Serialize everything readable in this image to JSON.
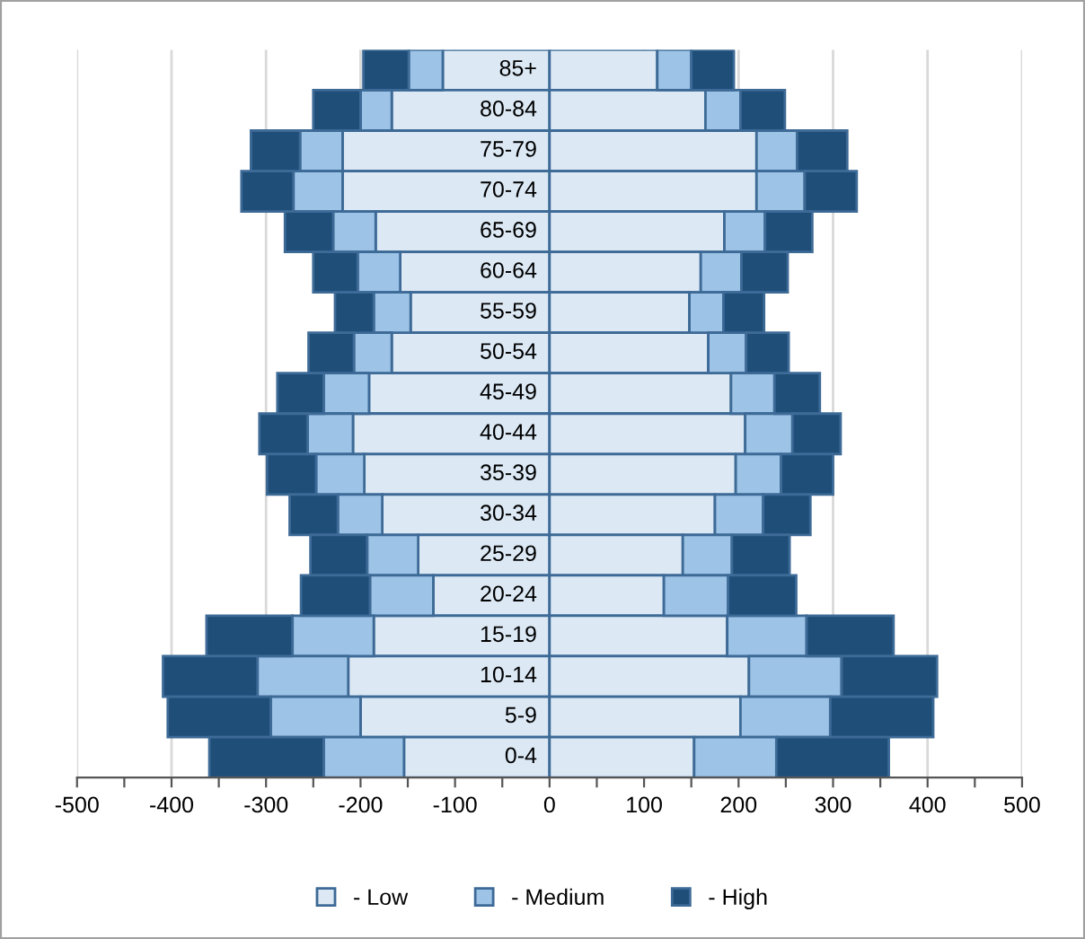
{
  "chart_data": {
    "type": "bar",
    "orientation": "horizontal",
    "stacked": true,
    "categories": [
      "85+",
      "80-84",
      "75-79",
      "70-74",
      "65-69",
      "60-64",
      "55-59",
      "50-54",
      "45-49",
      "40-44",
      "35-39",
      "30-34",
      "25-29",
      "20-24",
      "15-19",
      "10-14",
      "5-9",
      "0-4"
    ],
    "series": [
      {
        "color": "#dce9f5",
        "values": [
          -113,
          -167,
          -219,
          -219,
          -184,
          -158,
          -147,
          -167,
          -191,
          -208,
          -196,
          -177,
          -139,
          -123,
          -186,
          -213,
          -200,
          -154
        ]
      },
      {
        "color": "#9dc3e6",
        "values": [
          -36,
          -33,
          -45,
          -52,
          -45,
          -45,
          -39,
          -40,
          -48,
          -48,
          -51,
          -47,
          -54,
          -67,
          -86,
          -96,
          -95,
          -85
        ]
      },
      {
        "color": "#1f4e79",
        "values": [
          -48,
          -50,
          -52,
          -55,
          -51,
          -47,
          -41,
          -48,
          -49,
          -51,
          -52,
          -51,
          -60,
          -73,
          -91,
          -100,
          -109,
          -121
        ]
      },
      {
        "name": "- Low",
        "color": "#dce9f5",
        "values": [
          114,
          165,
          219,
          219,
          185,
          160,
          148,
          168,
          192,
          207,
          197,
          175,
          141,
          121,
          188,
          211,
          202,
          153
        ]
      },
      {
        "name": "- Medium",
        "color": "#9dc3e6",
        "values": [
          36,
          37,
          43,
          51,
          43,
          43,
          36,
          40,
          46,
          50,
          48,
          51,
          52,
          68,
          84,
          98,
          95,
          87
        ]
      },
      {
        "name": "- High",
        "color": "#1f4e79",
        "values": [
          45,
          47,
          53,
          55,
          50,
          49,
          43,
          45,
          48,
          51,
          55,
          50,
          61,
          72,
          92,
          101,
          109,
          119
        ]
      }
    ],
    "xlim": [
      -500,
      500
    ],
    "xticks": [
      -500,
      {
        "value": -450,
        "label": null
      },
      -400,
      {
        "value": -350,
        "label": null
      },
      -300,
      {
        "value": -250,
        "label": null
      },
      -200,
      {
        "value": -150,
        "label": null
      },
      -100,
      {
        "value": -50,
        "label": null
      },
      0,
      {
        "value": 50,
        "label": null
      },
      100,
      {
        "value": 150,
        "label": null
      },
      200,
      {
        "value": 250,
        "label": null
      },
      300,
      {
        "value": 350,
        "label": null
      },
      400,
      {
        "value": 450,
        "label": null
      },
      500
    ],
    "grid": "x",
    "legend": "bottom"
  }
}
